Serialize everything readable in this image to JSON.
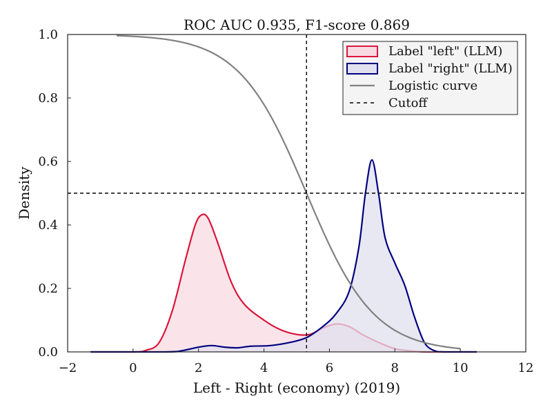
{
  "chart_data": {
    "type": "area",
    "title": "ROC AUC 0.935, F1-score 0.869",
    "xlabel": "Left - Right (economy) (2019)",
    "ylabel": "Density",
    "xlim": [
      -2,
      12
    ],
    "ylim": [
      0,
      1.0
    ],
    "x_ticks": [
      -2,
      0,
      2,
      4,
      6,
      8,
      10,
      12
    ],
    "x_tick_labels": [
      "−2",
      "0",
      "2",
      "4",
      "6",
      "8",
      "10",
      "12"
    ],
    "y_ticks": [
      0,
      0.2,
      0.4,
      0.6,
      0.8,
      1.0
    ],
    "y_tick_labels": [
      "0.0",
      "0.2",
      "0.4",
      "0.6",
      "0.8",
      "1.0"
    ],
    "grid": false,
    "legend_position": "top-right",
    "series": [
      {
        "name": "Label \"left\" (LLM)",
        "kind": "density",
        "color": "#dc143c",
        "fill": "#f8dbe2",
        "points": [
          [
            -1.3,
            0.0
          ],
          [
            0.0,
            0.0
          ],
          [
            0.4,
            0.005
          ],
          [
            0.8,
            0.03
          ],
          [
            1.2,
            0.13
          ],
          [
            1.6,
            0.29
          ],
          [
            1.9,
            0.4
          ],
          [
            2.1,
            0.432
          ],
          [
            2.3,
            0.42
          ],
          [
            2.6,
            0.34
          ],
          [
            3.0,
            0.22
          ],
          [
            3.4,
            0.15
          ],
          [
            4.0,
            0.1
          ],
          [
            4.5,
            0.07
          ],
          [
            5.0,
            0.055
          ],
          [
            5.4,
            0.055
          ],
          [
            5.8,
            0.075
          ],
          [
            6.2,
            0.088
          ],
          [
            6.6,
            0.08
          ],
          [
            7.0,
            0.055
          ],
          [
            7.5,
            0.03
          ],
          [
            8.0,
            0.01
          ],
          [
            8.5,
            0.003
          ],
          [
            9.0,
            0.0
          ],
          [
            10.5,
            0.0
          ]
        ]
      },
      {
        "name": "Label \"right\" (LLM)",
        "kind": "density",
        "color": "#000080",
        "fill": "#e0e0ee",
        "points": [
          [
            -1.3,
            0.0
          ],
          [
            1.0,
            0.0
          ],
          [
            1.5,
            0.004
          ],
          [
            2.0,
            0.015
          ],
          [
            2.4,
            0.02
          ],
          [
            2.8,
            0.015
          ],
          [
            3.2,
            0.013
          ],
          [
            3.6,
            0.018
          ],
          [
            4.2,
            0.02
          ],
          [
            4.8,
            0.03
          ],
          [
            5.3,
            0.045
          ],
          [
            5.8,
            0.08
          ],
          [
            6.2,
            0.12
          ],
          [
            6.6,
            0.19
          ],
          [
            6.9,
            0.33
          ],
          [
            7.1,
            0.5
          ],
          [
            7.3,
            0.605
          ],
          [
            7.5,
            0.5
          ],
          [
            7.7,
            0.36
          ],
          [
            8.0,
            0.28
          ],
          [
            8.3,
            0.21
          ],
          [
            8.6,
            0.11
          ],
          [
            8.9,
            0.03
          ],
          [
            9.2,
            0.004
          ],
          [
            9.5,
            0.0
          ],
          [
            10.5,
            0.0
          ]
        ]
      },
      {
        "name": "Logistic curve",
        "kind": "line",
        "color": "#808080",
        "logistic": {
          "midpoint": 5.3,
          "slope": 0.97,
          "x_start": -0.5,
          "x_end": 10.0
        }
      },
      {
        "name": "Cutoff",
        "kind": "reference-lines",
        "color": "#000000",
        "style": "dashed",
        "x": 5.3,
        "y": 0.5
      }
    ]
  }
}
